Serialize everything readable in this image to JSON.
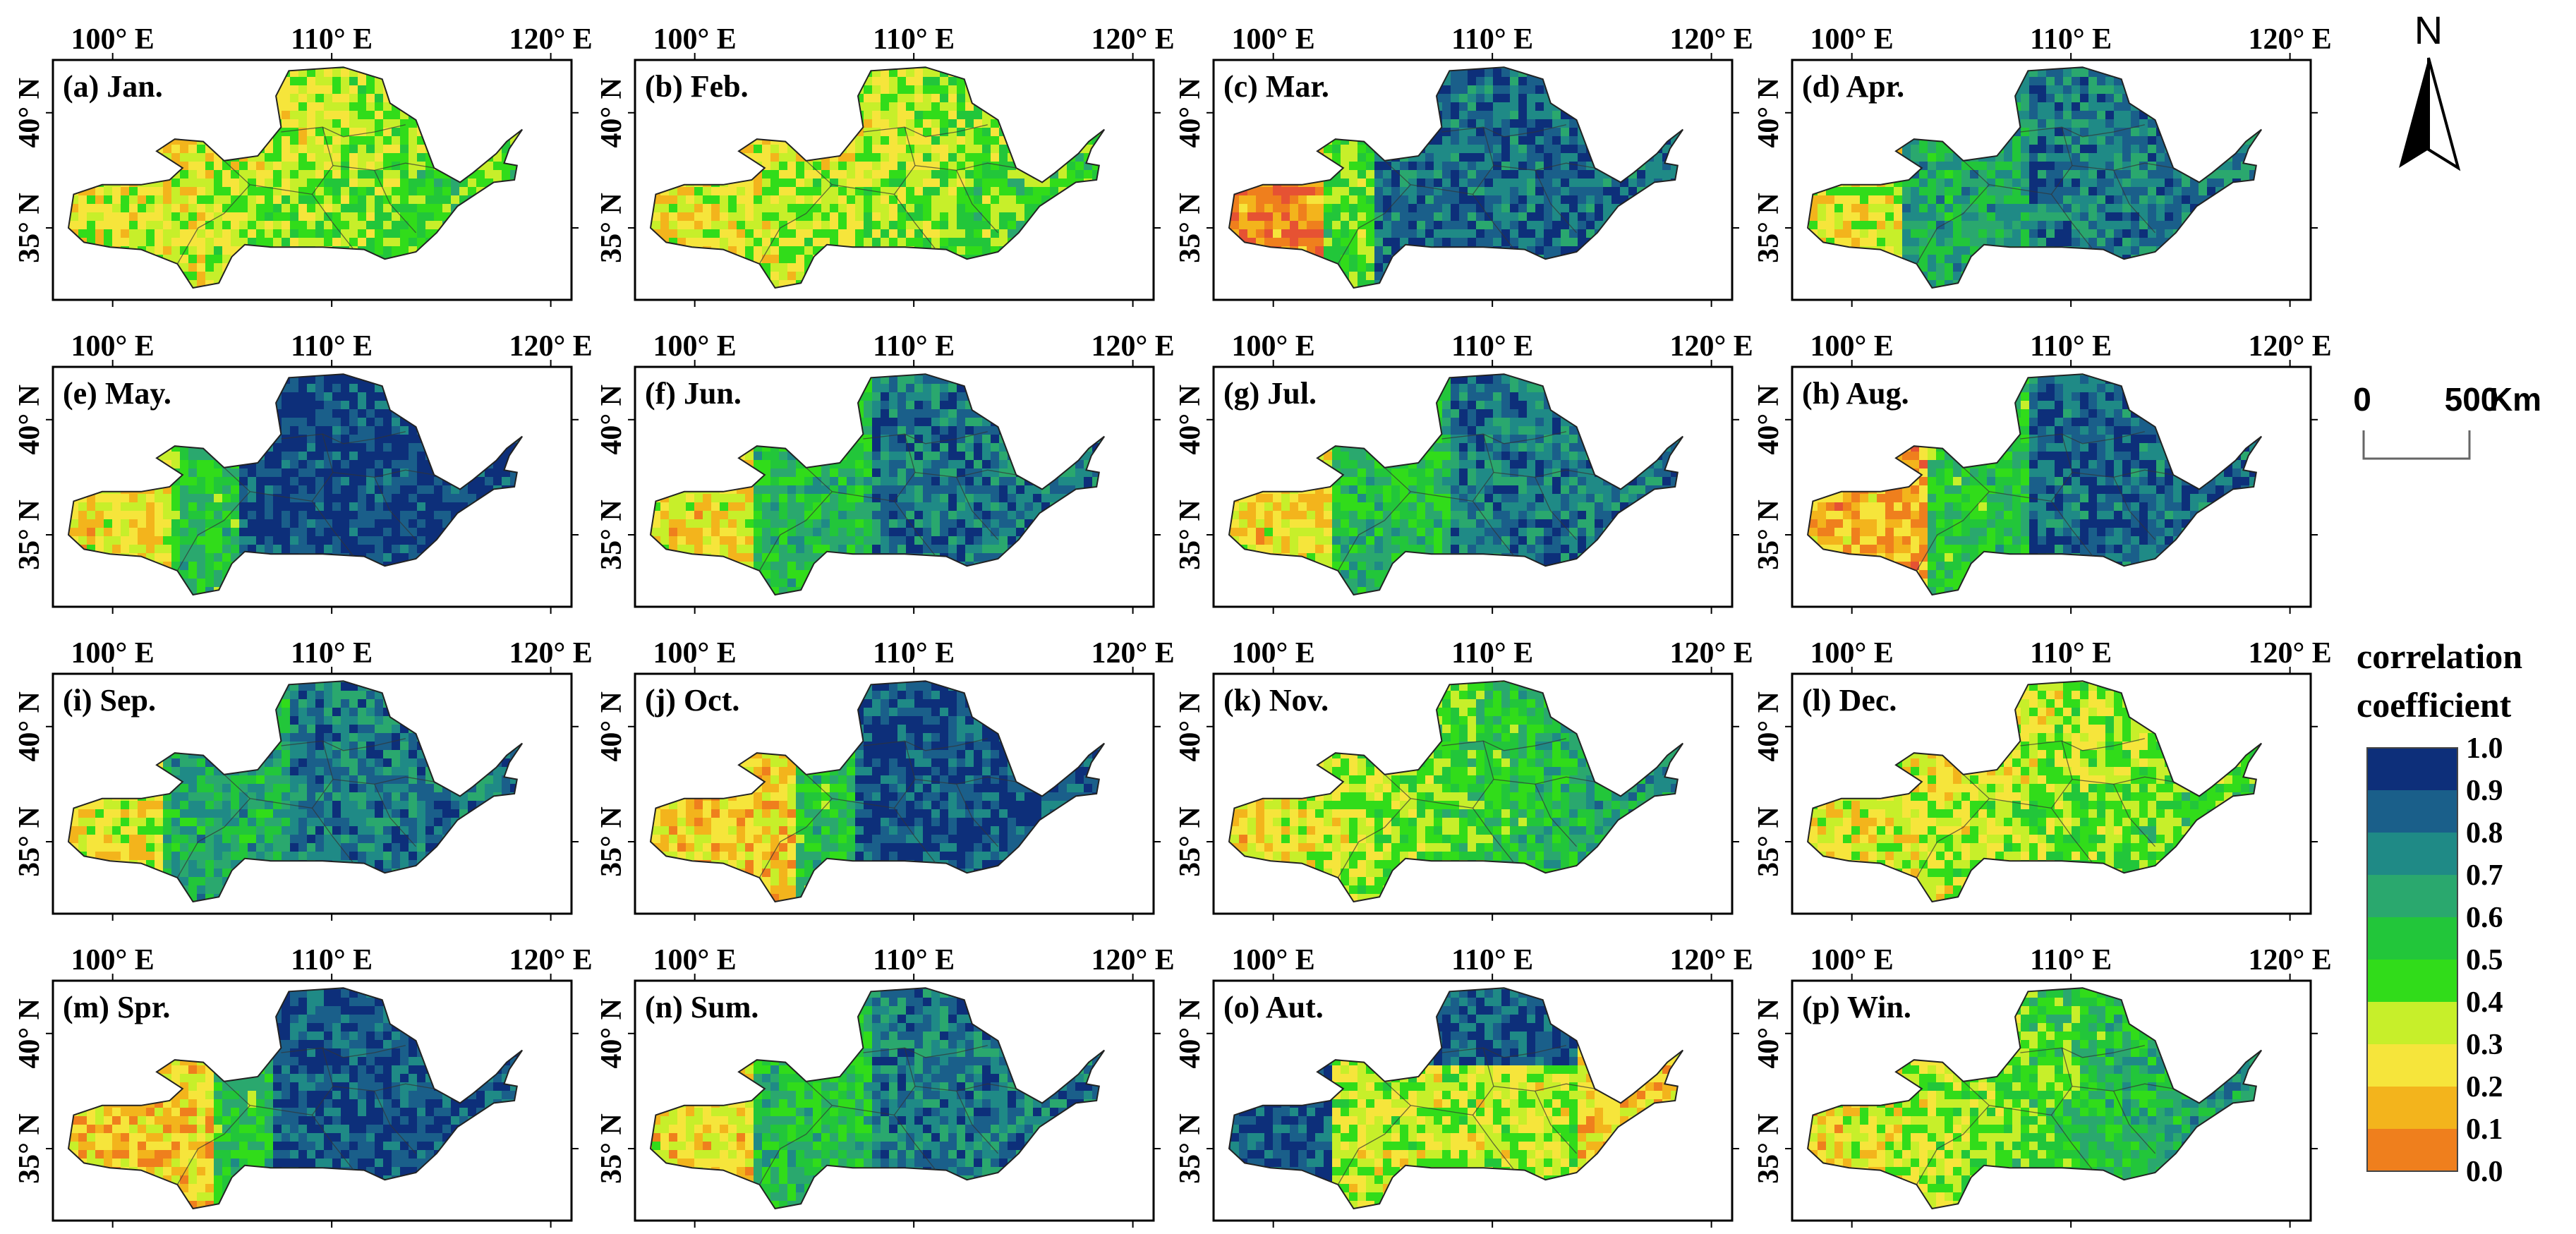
{
  "figure": {
    "panels": [
      {
        "label": "(a) Jan.",
        "scheme": "mixed_hi",
        "seed": 11
      },
      {
        "label": "(b) Feb.",
        "scheme": "mixed_hi",
        "seed": 23
      },
      {
        "label": "(c) Mar.",
        "scheme": "blue_west_red",
        "seed": 37
      },
      {
        "label": "(d) Apr.",
        "scheme": "teal_blue",
        "seed": 41
      },
      {
        "label": "(e) May.",
        "scheme": "deep_blue",
        "seed": 53
      },
      {
        "label": "(f) Jun.",
        "scheme": "blue_green",
        "seed": 67
      },
      {
        "label": "(g) Jul.",
        "scheme": "blue_green",
        "seed": 71
      },
      {
        "label": "(h) Aug.",
        "scheme": "blue_green_west_orange",
        "seed": 83
      },
      {
        "label": "(i) Sep.",
        "scheme": "teal_blue",
        "seed": 97
      },
      {
        "label": "(j) Oct.",
        "scheme": "blue_west_orange",
        "seed": 101
      },
      {
        "label": "(k) Nov.",
        "scheme": "mixed_mid",
        "seed": 113
      },
      {
        "label": "(l) Dec.",
        "scheme": "mixed_hi",
        "seed": 127
      },
      {
        "label": "(m) Spr.",
        "scheme": "blue_west_orange",
        "seed": 131
      },
      {
        "label": "(n) Sum.",
        "scheme": "blue_green",
        "seed": 149
      },
      {
        "label": "(o) Aut.",
        "scheme": "yellow_center",
        "seed": 151
      },
      {
        "label": "(p) Win.",
        "scheme": "mixed_mid",
        "seed": 163
      }
    ],
    "x_ticks": [
      "100° E",
      "110° E",
      "120° E"
    ],
    "y_ticks": [
      "40° N",
      "35° N"
    ],
    "north_label": "N",
    "scale_bar": {
      "start": "0",
      "end": "500",
      "unit": "Km"
    },
    "legend": {
      "title_line1": "correlation",
      "title_line2": "coefficient",
      "labels": [
        "1.0",
        "0.9",
        "0.8",
        "0.7",
        "0.6",
        "0.5",
        "0.4",
        "0.3",
        "0.2",
        "0.1",
        "0.0"
      ],
      "colors": [
        "#0d2f7a",
        "#1a5f8a",
        "#1f8a86",
        "#2aa86e",
        "#22c63a",
        "#31dc1a",
        "#c7ef2a",
        "#f6e53b",
        "#f3b41c",
        "#ef7f1d",
        "#e65233"
      ]
    }
  }
}
